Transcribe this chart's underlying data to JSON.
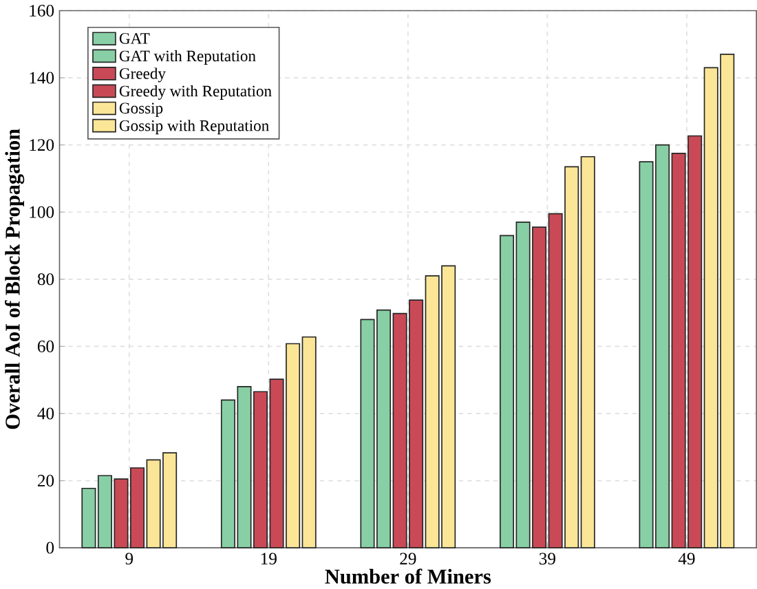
{
  "chart_data": {
    "type": "bar",
    "xlabel": "Number of Miners",
    "ylabel": "Overall AoI of Block Propagation",
    "categories": [
      "9",
      "19",
      "29",
      "39",
      "49"
    ],
    "series": [
      {
        "name": "GAT",
        "color": "#88cfa5",
        "values": [
          17.7,
          44,
          68,
          93,
          115
        ]
      },
      {
        "name": "GAT with Reputation",
        "color": "#88cfa5",
        "values": [
          21.5,
          48,
          70.8,
          97,
          120
        ]
      },
      {
        "name": "Greedy",
        "color": "#c94a56",
        "values": [
          20.5,
          46.5,
          69.8,
          95.5,
          117.5
        ]
      },
      {
        "name": "Greedy with Reputation",
        "color": "#c94a56",
        "values": [
          23.8,
          50.2,
          73.8,
          99.5,
          122.7
        ]
      },
      {
        "name": "Gossip",
        "color": "#fbe697",
        "values": [
          26.2,
          60.8,
          81,
          113.5,
          143
        ]
      },
      {
        "name": "Gossip with Reputation",
        "color": "#fbe697",
        "values": [
          28.3,
          62.8,
          84,
          116.5,
          147
        ]
      }
    ],
    "ylim": [
      0,
      160
    ],
    "yticks": [
      0,
      20,
      40,
      60,
      80,
      100,
      120,
      140,
      160
    ],
    "grid": true,
    "legend": "top left"
  }
}
